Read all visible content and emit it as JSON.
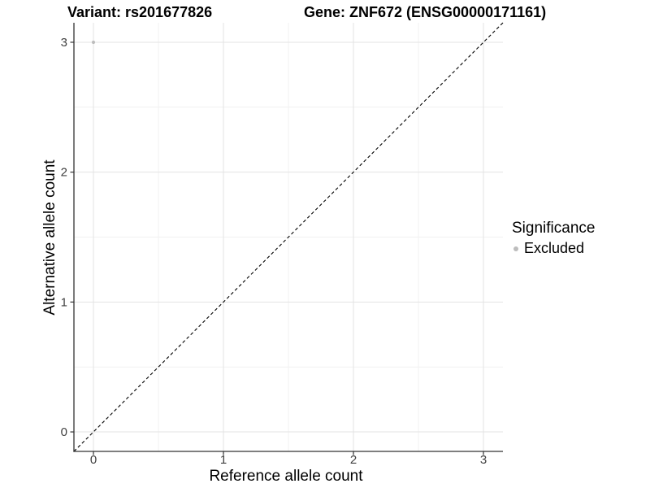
{
  "chart_data": {
    "type": "scatter",
    "titles": {
      "variant": "Variant: rs201677826",
      "gene": "Gene: ZNF672 (ENSG00000171161)"
    },
    "xlabel": "Reference allele count",
    "ylabel": "Alternative allele count",
    "xlim": [
      -0.15,
      3.15
    ],
    "ylim": [
      -0.15,
      3.15
    ],
    "xticks": [
      0,
      1,
      2,
      3
    ],
    "yticks": [
      0,
      1,
      2,
      3
    ],
    "x_minor_ticks": [
      0.5,
      1.5,
      2.5
    ],
    "y_minor_ticks": [
      0.5,
      1.5,
      2.5
    ],
    "grid": "major-and-minor",
    "points": [
      {
        "x": 0,
        "y": 3,
        "series": "Excluded"
      }
    ],
    "reference_line": {
      "kind": "identity",
      "from": [
        -0.15,
        -0.15
      ],
      "to": [
        3.15,
        3.15
      ],
      "style": "dashed",
      "color": "#000000"
    },
    "legend": {
      "title": "Significance",
      "position": "right",
      "entries": [
        {
          "label": "Excluded",
          "color": "#bdbdbd"
        }
      ]
    },
    "colors": {
      "point": "#bdbdbd",
      "grid_major": "#e3e3e3",
      "grid_minor": "#f1f1f1",
      "axis": "#333333",
      "tick_label": "#404040",
      "text": "#000000",
      "background": "#ffffff"
    }
  }
}
